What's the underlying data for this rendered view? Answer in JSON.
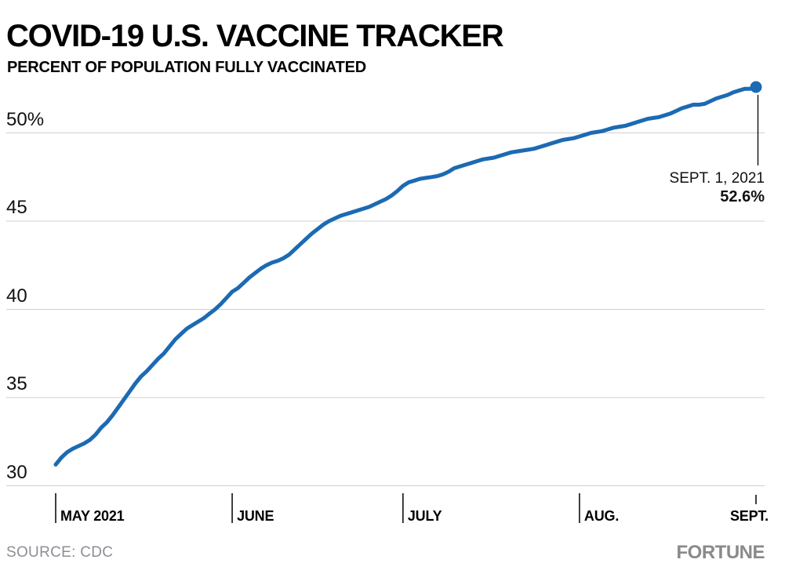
{
  "header": {
    "title": "COVID-19 U.S. VACCINE TRACKER",
    "subtitle": "PERCENT OF POPULATION FULLY VACCINATED"
  },
  "annotation": {
    "date_label": "SEPT. 1, 2021",
    "value_label": "52.6%"
  },
  "footer": {
    "source_label": "SOURCE: CDC",
    "brand": "FORTUNE"
  },
  "colors": {
    "line": "#1c6ab3",
    "point": "#1c6ab3",
    "grid": "#cfcfcf",
    "tick": "#000000",
    "annotation_line": "#000000",
    "muted_text": "#8b8e94",
    "brand_gray": "#8a8a8a"
  },
  "chart_data": {
    "type": "line",
    "title": "COVID-19 U.S. VACCINE TRACKER",
    "subtitle": "PERCENT OF POPULATION FULLY VACCINATED",
    "xlabel": "",
    "ylabel": "Percent of population fully vaccinated (%)",
    "x_unit": "days since May 1, 2021",
    "x_range_days": [
      0,
      123
    ],
    "ylim": [
      29.6,
      53.3
    ],
    "grid": "horizontal-only",
    "legend": "none",
    "y_axis": {
      "ticks": [
        {
          "label": "50%",
          "value": 50
        },
        {
          "label": "45",
          "value": 45
        },
        {
          "label": "40",
          "value": 40
        },
        {
          "label": "35",
          "value": 35
        },
        {
          "label": "30",
          "value": 30
        }
      ]
    },
    "x_axis": {
      "months": [
        {
          "label": "MAY 2021",
          "day": 0
        },
        {
          "label": "JUNE",
          "day": 31
        },
        {
          "label": "JULY",
          "day": 61
        },
        {
          "label": "AUG.",
          "day": 92
        },
        {
          "label": "SEPT.",
          "day": 123
        }
      ]
    },
    "series": [
      {
        "name": "Percent of U.S. population fully vaccinated",
        "points": [
          [
            0,
            31.2
          ],
          [
            1,
            31.6
          ],
          [
            2,
            31.9
          ],
          [
            3,
            32.1
          ],
          [
            4,
            32.25
          ],
          [
            5,
            32.4
          ],
          [
            6,
            32.6
          ],
          [
            7,
            32.9
          ],
          [
            8,
            33.3
          ],
          [
            9,
            33.6
          ],
          [
            10,
            34.0
          ],
          [
            11,
            34.45
          ],
          [
            12,
            34.9
          ],
          [
            13,
            35.35
          ],
          [
            14,
            35.8
          ],
          [
            15,
            36.2
          ],
          [
            16,
            36.5
          ],
          [
            17,
            36.85
          ],
          [
            18,
            37.2
          ],
          [
            19,
            37.5
          ],
          [
            20,
            37.9
          ],
          [
            21,
            38.3
          ],
          [
            22,
            38.6
          ],
          [
            23,
            38.9
          ],
          [
            24,
            39.1
          ],
          [
            25,
            39.3
          ],
          [
            26,
            39.5
          ],
          [
            27,
            39.75
          ],
          [
            28,
            40.0
          ],
          [
            29,
            40.3
          ],
          [
            30,
            40.65
          ],
          [
            31,
            41.0
          ],
          [
            32,
            41.2
          ],
          [
            33,
            41.5
          ],
          [
            34,
            41.8
          ],
          [
            35,
            42.05
          ],
          [
            36,
            42.3
          ],
          [
            37,
            42.5
          ],
          [
            38,
            42.65
          ],
          [
            39,
            42.75
          ],
          [
            40,
            42.9
          ],
          [
            41,
            43.1
          ],
          [
            42,
            43.4
          ],
          [
            43,
            43.7
          ],
          [
            44,
            44.0
          ],
          [
            45,
            44.3
          ],
          [
            46,
            44.55
          ],
          [
            47,
            44.8
          ],
          [
            48,
            45.0
          ],
          [
            49,
            45.15
          ],
          [
            50,
            45.3
          ],
          [
            51,
            45.4
          ],
          [
            52,
            45.5
          ],
          [
            53,
            45.6
          ],
          [
            54,
            45.7
          ],
          [
            55,
            45.8
          ],
          [
            56,
            45.95
          ],
          [
            57,
            46.1
          ],
          [
            58,
            46.25
          ],
          [
            59,
            46.45
          ],
          [
            60,
            46.7
          ],
          [
            61,
            47.0
          ],
          [
            62,
            47.2
          ],
          [
            63,
            47.3
          ],
          [
            64,
            47.4
          ],
          [
            65,
            47.45
          ],
          [
            66,
            47.5
          ],
          [
            67,
            47.55
          ],
          [
            68,
            47.65
          ],
          [
            69,
            47.8
          ],
          [
            70,
            48.0
          ],
          [
            71,
            48.1
          ],
          [
            72,
            48.2
          ],
          [
            73,
            48.3
          ],
          [
            74,
            48.4
          ],
          [
            75,
            48.5
          ],
          [
            76,
            48.55
          ],
          [
            77,
            48.6
          ],
          [
            78,
            48.7
          ],
          [
            79,
            48.8
          ],
          [
            80,
            48.9
          ],
          [
            81,
            48.95
          ],
          [
            82,
            49.0
          ],
          [
            83,
            49.05
          ],
          [
            84,
            49.1
          ],
          [
            85,
            49.2
          ],
          [
            86,
            49.3
          ],
          [
            87,
            49.4
          ],
          [
            88,
            49.5
          ],
          [
            89,
            49.6
          ],
          [
            90,
            49.65
          ],
          [
            91,
            49.7
          ],
          [
            92,
            49.8
          ],
          [
            93,
            49.9
          ],
          [
            94,
            50.0
          ],
          [
            95,
            50.05
          ],
          [
            96,
            50.1
          ],
          [
            97,
            50.2
          ],
          [
            98,
            50.3
          ],
          [
            99,
            50.35
          ],
          [
            100,
            50.4
          ],
          [
            101,
            50.5
          ],
          [
            102,
            50.6
          ],
          [
            103,
            50.7
          ],
          [
            104,
            50.8
          ],
          [
            105,
            50.85
          ],
          [
            106,
            50.9
          ],
          [
            107,
            51.0
          ],
          [
            108,
            51.1
          ],
          [
            109,
            51.25
          ],
          [
            110,
            51.4
          ],
          [
            111,
            51.5
          ],
          [
            112,
            51.6
          ],
          [
            113,
            51.6
          ],
          [
            114,
            51.65
          ],
          [
            115,
            51.8
          ],
          [
            116,
            51.95
          ],
          [
            117,
            52.05
          ],
          [
            118,
            52.15
          ],
          [
            119,
            52.3
          ],
          [
            120,
            52.4
          ],
          [
            121,
            52.5
          ],
          [
            122,
            52.5
          ],
          [
            123,
            52.6
          ]
        ]
      }
    ],
    "end_point": {
      "day": 123,
      "value": 52.6,
      "date": "SEPT. 1, 2021"
    }
  }
}
